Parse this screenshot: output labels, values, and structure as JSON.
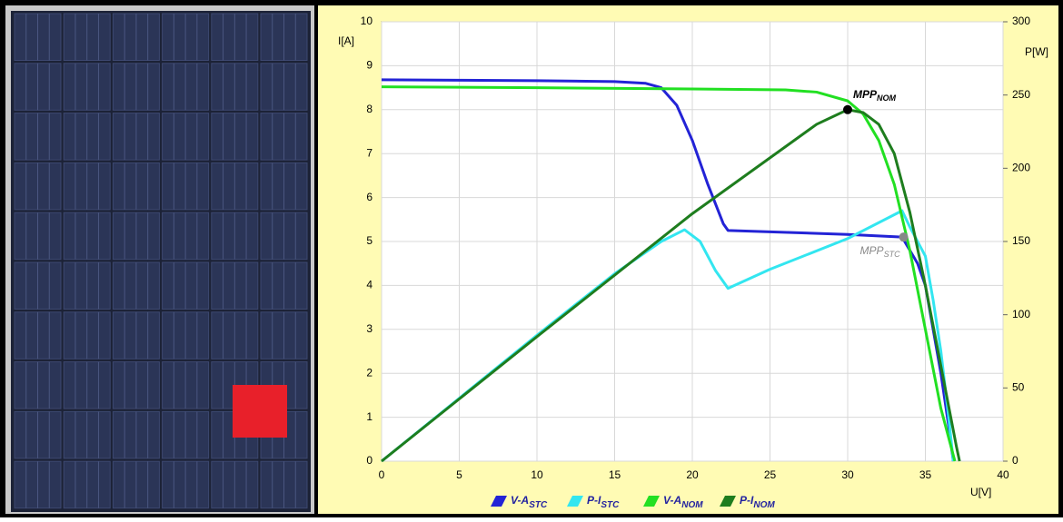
{
  "chart_data": {
    "type": "line",
    "y_label": "I[A]",
    "y2_label": "P[W]",
    "x_label": "U[V]",
    "xlim": [
      0,
      40
    ],
    "xticks": [
      0,
      5,
      10,
      15,
      20,
      25,
      30,
      35,
      40
    ],
    "ylim": [
      0,
      10
    ],
    "yticks": [
      0,
      1,
      2,
      3,
      4,
      5,
      6,
      7,
      8,
      9,
      10
    ],
    "y2lim": [
      0,
      300
    ],
    "y2ticks": [
      0,
      50,
      100,
      150,
      200,
      250,
      300
    ],
    "grid": true,
    "legend": "bottom",
    "series": [
      {
        "name": "V-A",
        "name_subscript": "STC",
        "color": "#2323d6",
        "x": [
          0,
          5,
          10,
          15,
          17,
          18,
          19,
          20,
          21,
          22,
          22.3,
          25,
          30,
          33.5,
          34.5,
          35,
          35.5,
          36,
          36.5,
          36.8
        ],
        "values": [
          8.68,
          8.67,
          8.66,
          8.64,
          8.6,
          8.5,
          8.1,
          7.3,
          6.3,
          5.4,
          5.25,
          5.22,
          5.16,
          5.1,
          4.5,
          4,
          3,
          2,
          0.8,
          0
        ]
      },
      {
        "name": "P-I",
        "name_subscript": "STC",
        "color": "#33e6f0",
        "axis": "y2",
        "x": [
          0,
          5,
          10,
          15,
          18,
          19.5,
          20.5,
          21.5,
          22.3,
          25,
          30,
          33.5,
          34,
          35,
          35.5,
          36,
          36.5,
          36.8
        ],
        "values": [
          0,
          43,
          86,
          128,
          150,
          158,
          150,
          130,
          118,
          131,
          152,
          171,
          160,
          140,
          110,
          75,
          30,
          0
        ]
      },
      {
        "name": "V-A",
        "name_subscript": "NOM",
        "color": "#22e022",
        "x": [
          0,
          10,
          20,
          26,
          28,
          30,
          31,
          32,
          33,
          34,
          35,
          36,
          36.9
        ],
        "values": [
          8.52,
          8.5,
          8.47,
          8.45,
          8.4,
          8.2,
          7.9,
          7.3,
          6.3,
          4.8,
          3,
          1.2,
          0
        ]
      },
      {
        "name": "P-I",
        "name_subscript": "NOM",
        "color": "#1e7d1e",
        "axis": "y2",
        "x": [
          0,
          10,
          20,
          28,
          30,
          31,
          32,
          33,
          34,
          35,
          36,
          37,
          37.2
        ],
        "values": [
          0,
          85,
          169,
          230,
          240,
          238,
          230,
          210,
          170,
          120,
          65,
          10,
          0
        ]
      }
    ],
    "annotations": [
      {
        "text": "MPP",
        "sub": "NOM",
        "x": 30,
        "y": 240,
        "axis": "y2",
        "color": "#000000"
      },
      {
        "text": "MPP",
        "sub": "STC",
        "x": 33.6,
        "y": 153,
        "axis": "y2",
        "color": "#888888"
      }
    ]
  }
}
